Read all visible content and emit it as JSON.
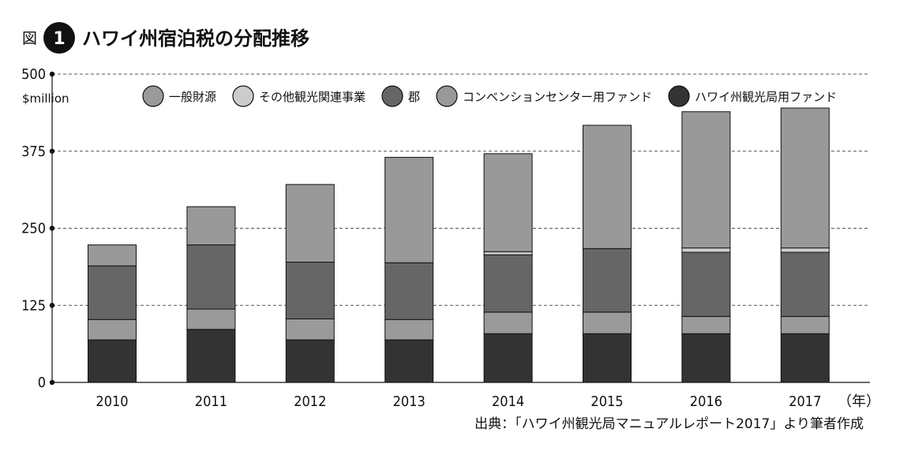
{
  "figure": {
    "prefix": "図",
    "number": "1",
    "title": "ハワイ州宿泊税の分配推移"
  },
  "source": "出典：「ハワイ州観光局マニュアルレポート2017」より筆者作成",
  "chart_data": {
    "type": "bar",
    "stacked": true,
    "title": "ハワイ州宿泊税の分配推移",
    "ylabel": "$million",
    "xlabel": "",
    "x_unit_label": "（年）",
    "ylim": [
      0,
      500
    ],
    "yticks": [
      0,
      125,
      250,
      375,
      500
    ],
    "grid": "horizontal dashed",
    "legend_position": "top",
    "categories": [
      "2010",
      "2011",
      "2012",
      "2013",
      "2014",
      "2015",
      "2016",
      "2017"
    ],
    "series": [
      {
        "name": "ハワイ州観光局用ファンド",
        "color": "#333333",
        "values": [
          69,
          86,
          69,
          69,
          79,
          79,
          79,
          79
        ]
      },
      {
        "name": "一般財源",
        "color": "#9a9a9a",
        "values": [
          33,
          33,
          34,
          33,
          35,
          35,
          28,
          28
        ]
      },
      {
        "name": "郡",
        "color": "#666666",
        "values": [
          87,
          104,
          92,
          92,
          93,
          103,
          104,
          104
        ]
      },
      {
        "name": "その他観光関連事業",
        "color": "#cccccc",
        "values": [
          0,
          0,
          0,
          0,
          5,
          0,
          7,
          7
        ]
      },
      {
        "name": "コンベンションセンター用ファンド",
        "color": "#999999",
        "values": [
          34,
          62,
          126,
          171,
          159,
          200,
          221,
          227
        ]
      }
    ],
    "legend_order": [
      "一般財源",
      "その他観光関連事業",
      "郡",
      "コンベンションセンター用ファンド",
      "ハワイ州観光局用ファンド"
    ]
  }
}
